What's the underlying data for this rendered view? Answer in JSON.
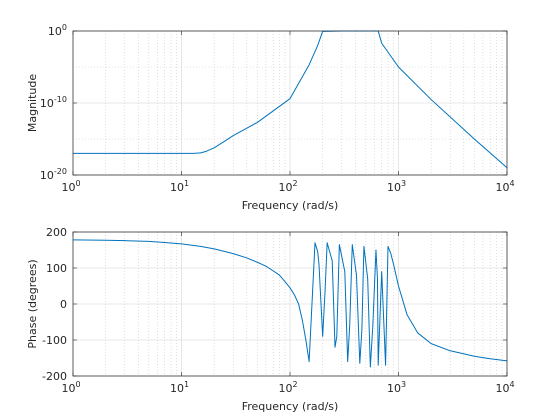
{
  "chart_data": [
    {
      "type": "line",
      "name": "magnitude-plot",
      "xlabel": "Frequency (rad/s)",
      "ylabel": "Magnitude",
      "xscale": "log",
      "yscale": "log",
      "xlim": [
        1,
        10000
      ],
      "ylim": [
        1e-20,
        1
      ],
      "x_ticks": [
        {
          "value": 1,
          "base": "10",
          "exp": "0"
        },
        {
          "value": 10,
          "base": "10",
          "exp": "1"
        },
        {
          "value": 100,
          "base": "10",
          "exp": "2"
        },
        {
          "value": 1000,
          "base": "10",
          "exp": "3"
        },
        {
          "value": 10000,
          "base": "10",
          "exp": "4"
        }
      ],
      "y_ticks": [
        {
          "value": 1e-20,
          "base": "10",
          "exp": "-20"
        },
        {
          "value": 1e-10,
          "base": "10",
          "exp": "-10"
        },
        {
          "value": 1,
          "base": "10",
          "exp": "0"
        }
      ],
      "grid": true,
      "color": "#0072bd",
      "series": [
        {
          "x": [
            1,
            5,
            10,
            13,
            15,
            17,
            20,
            25,
            30,
            50,
            100,
            150,
            180,
            200,
            300,
            400,
            500,
            600,
            650,
            700,
            1000,
            2000,
            5000,
            10000
          ],
          "y": [
            1e-17,
            1e-17,
            1e-17,
            1e-17,
            1.2e-17,
            2e-17,
            6e-17,
            5e-16,
            3e-15,
            2e-13,
            4e-10,
            2e-05,
            0.01,
            0.9,
            1,
            1,
            1,
            1,
            1,
            0.02,
            1e-05,
            3e-10,
            1e-15,
            1e-19
          ]
        }
      ]
    },
    {
      "type": "line",
      "name": "phase-plot",
      "xlabel": "Frequency (rad/s)",
      "ylabel": "Phase (degrees)",
      "xscale": "log",
      "yscale": "linear",
      "xlim": [
        1,
        10000
      ],
      "ylim": [
        -200,
        200
      ],
      "x_ticks": [
        {
          "value": 1,
          "base": "10",
          "exp": "0"
        },
        {
          "value": 10,
          "base": "10",
          "exp": "1"
        },
        {
          "value": 100,
          "base": "10",
          "exp": "2"
        },
        {
          "value": 1000,
          "base": "10",
          "exp": "3"
        },
        {
          "value": 10000,
          "base": "10",
          "exp": "4"
        }
      ],
      "y_ticks": [
        {
          "value": -200,
          "label": "-200"
        },
        {
          "value": -100,
          "label": "-100"
        },
        {
          "value": 0,
          "label": "0"
        },
        {
          "value": 100,
          "label": "100"
        },
        {
          "value": 200,
          "label": "200"
        }
      ],
      "grid": true,
      "color": "#0072bd",
      "series": [
        {
          "x": [
            1,
            2,
            3,
            5,
            7,
            10,
            15,
            20,
            30,
            40,
            50,
            60,
            70,
            80,
            90,
            100,
            110,
            120,
            130,
            140,
            150,
            170,
            180,
            185,
            200,
            210,
            220,
            245,
            260,
            270,
            285,
            320,
            340,
            355,
            375,
            410,
            440,
            460,
            480,
            520,
            550,
            580,
            620,
            640,
            650,
            700,
            760,
            800,
            850,
            900,
            1000,
            1200,
            1500,
            2000,
            3000,
            5000,
            7000,
            10000
          ],
          "y": [
            178,
            177,
            176,
            174,
            171,
            167,
            160,
            153,
            140,
            128,
            116,
            105,
            92,
            80,
            62,
            45,
            25,
            0,
            -45,
            -100,
            -160,
            170,
            145,
            110,
            -90,
            30,
            170,
            120,
            -120,
            -90,
            165,
            90,
            -160,
            -60,
            165,
            80,
            -165,
            -70,
            160,
            70,
            -175,
            -60,
            150,
            70,
            -170,
            90,
            -170,
            160,
            140,
            110,
            50,
            -30,
            -80,
            -110,
            -130,
            -145,
            -152,
            -158
          ]
        }
      ]
    }
  ]
}
